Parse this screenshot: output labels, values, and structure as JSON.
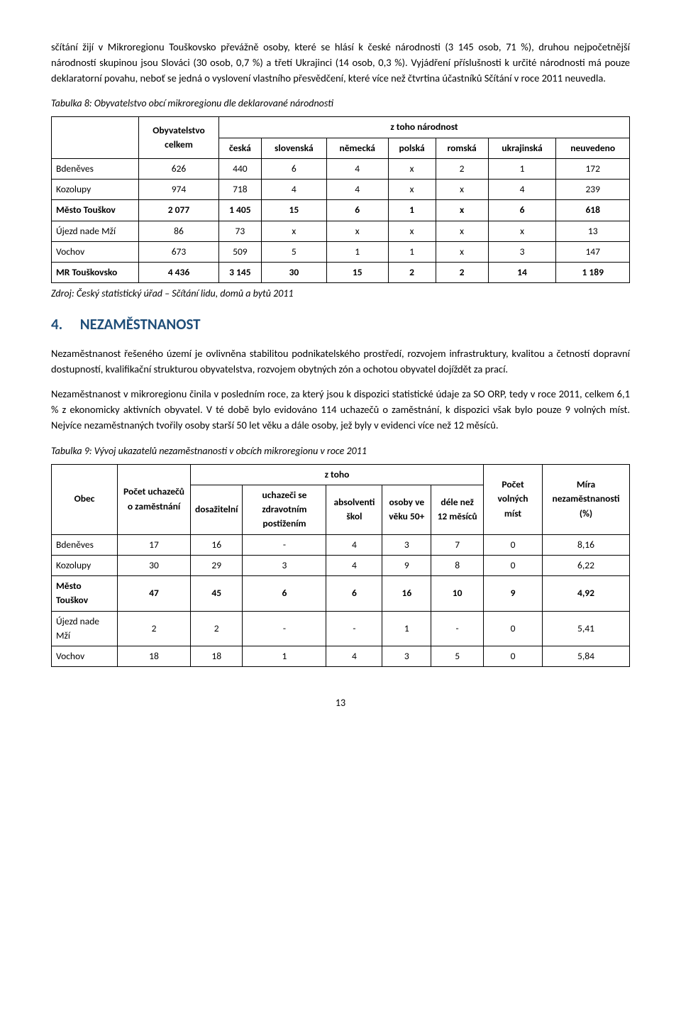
{
  "para1": "sčítání žijí v Mikroregionu Touškovsko převážně osoby, které se hlásí k české národnosti (3 145 osob, 71 %), druhou nejpočetnější národností skupinou jsou Slováci (30 osob, 0,7 %) a třetí Ukrajinci (14 osob, 0,3 %). Vyjádření příslušnosti k určité národnosti má pouze deklaratorní povahu, neboť se jedná o vyslovení vlastního přesvědčení, které více než čtvrtina účastníků Sčítání v roce 2011 neuvedla.",
  "table8": {
    "caption": "Tabulka 8: Obyvatelstvo obcí mikroregionu dle deklarované národnosti",
    "head_pop": "Obyvatelstvo celkem",
    "head_group": "z toho národnost",
    "cols": [
      "česká",
      "slovenská",
      "německá",
      "polská",
      "romská",
      "ukrajinská",
      "neuvedeno"
    ],
    "rows": [
      {
        "name": "Bdeněves",
        "pop": "626",
        "v": [
          "440",
          "6",
          "4",
          "x",
          "2",
          "1",
          "172"
        ],
        "bold": false
      },
      {
        "name": "Kozolupy",
        "pop": "974",
        "v": [
          "718",
          "4",
          "4",
          "x",
          "x",
          "4",
          "239"
        ],
        "bold": false
      },
      {
        "name": "Město Touškov",
        "pop": "2 077",
        "v": [
          "1 405",
          "15",
          "6",
          "1",
          "x",
          "6",
          "618"
        ],
        "bold": true
      },
      {
        "name": "Újezd nade Mží",
        "pop": "86",
        "v": [
          "73",
          "x",
          "x",
          "x",
          "x",
          "x",
          "13"
        ],
        "bold": false
      },
      {
        "name": "Vochov",
        "pop": "673",
        "v": [
          "509",
          "5",
          "1",
          "1",
          "x",
          "3",
          "147"
        ],
        "bold": false
      },
      {
        "name": "MR Touškovsko",
        "pop": "4 436",
        "v": [
          "3 145",
          "30",
          "15",
          "2",
          "2",
          "14",
          "1 189"
        ],
        "bold": true
      }
    ],
    "source": "Zdroj: Český statistický úřad – Sčítání lidu, domů a bytů 2011"
  },
  "section4": {
    "num": "4.",
    "title": "NEZAMĚSTNANOST"
  },
  "para2": "Nezaměstnanost řešeného území je ovlivněna stabilitou podnikatelského prostředí, rozvojem infrastruktury, kvalitou a četností dopravní dostupností, kvalifikační strukturou obyvatelstva, rozvojem obytných zón a ochotou obyvatel dojíždět za prací.",
  "para3": "Nezaměstnanost v mikroregionu činila v posledním roce, za který jsou k dispozici statistické údaje za SO ORP, tedy v roce 2011, celkem 6,1 % z ekonomicky aktivních obyvatel. V té době bylo evidováno 114 uchazečů o zaměstnání, k dispozici však bylo pouze 9 volných míst. Nejvíce nezaměstnaných tvořily osoby starší 50 let věku a dále osoby, jež byly v evidenci více než 12 měsíců.",
  "table9": {
    "caption": "Tabulka 9: Vývoj ukazatelů nezaměstnanosti v obcích mikroregionu v roce 2011",
    "head_obec": "Obec",
    "head_count": "Počet uchazečů o zaměstnání",
    "head_group": "z toho",
    "cols": [
      "dosažitelní",
      "uchazeči se zdravotním postižením",
      "absolventi škol",
      "osoby ve věku 50+",
      "déle než 12 měsíců"
    ],
    "head_free": "Počet volných míst",
    "head_rate": "Míra nezaměstnanosti (%)",
    "rows": [
      {
        "name": "Bdeněves",
        "count": "17",
        "v": [
          "16",
          "-",
          "4",
          "3",
          "7"
        ],
        "free": "0",
        "rate": "8,16",
        "bold": false
      },
      {
        "name": "Kozolupy",
        "count": "30",
        "v": [
          "29",
          "3",
          "4",
          "9",
          "8"
        ],
        "free": "0",
        "rate": "6,22",
        "bold": false
      },
      {
        "name": "Město Touškov",
        "count": "47",
        "v": [
          "45",
          "6",
          "6",
          "16",
          "10"
        ],
        "free": "9",
        "rate": "4,92",
        "bold": true
      },
      {
        "name": "Újezd nade Mží",
        "count": "2",
        "v": [
          "2",
          "-",
          "-",
          "1",
          "-"
        ],
        "free": "0",
        "rate": "5,41",
        "bold": false
      },
      {
        "name": "Vochov",
        "count": "18",
        "v": [
          "18",
          "1",
          "4",
          "3",
          "5"
        ],
        "free": "0",
        "rate": "5,84",
        "bold": false
      }
    ]
  },
  "page_number": "13"
}
